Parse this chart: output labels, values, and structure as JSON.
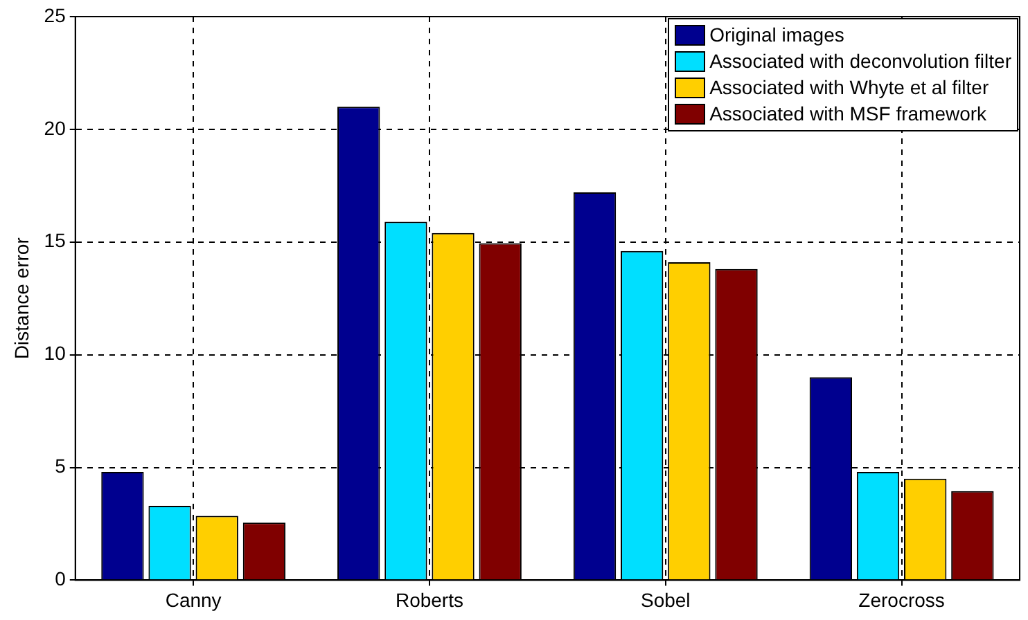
{
  "chart_data": {
    "type": "bar",
    "ylabel": "Distance error",
    "categories": [
      "Canny",
      "Roberts",
      "Sobel",
      "Zerocross"
    ],
    "series": [
      {
        "name": "Original images",
        "color": "#00008f",
        "values": [
          4.8,
          21.0,
          17.2,
          9.0
        ]
      },
      {
        "name": "Associated with deconvolution filter",
        "color": "#00dfff",
        "values": [
          3.3,
          15.9,
          14.6,
          4.8
        ]
      },
      {
        "name": "Associated with Whyte et al filter",
        "color": "#ffcf00",
        "values": [
          2.85,
          15.4,
          14.1,
          4.5
        ]
      },
      {
        "name": "Associated with MSF framework",
        "color": "#800000",
        "values": [
          2.55,
          14.95,
          13.8,
          3.95
        ]
      }
    ],
    "ylim": [
      0,
      25
    ],
    "yticks": [
      0,
      5,
      10,
      15,
      20,
      25
    ],
    "grid": true,
    "legend": "top right"
  }
}
